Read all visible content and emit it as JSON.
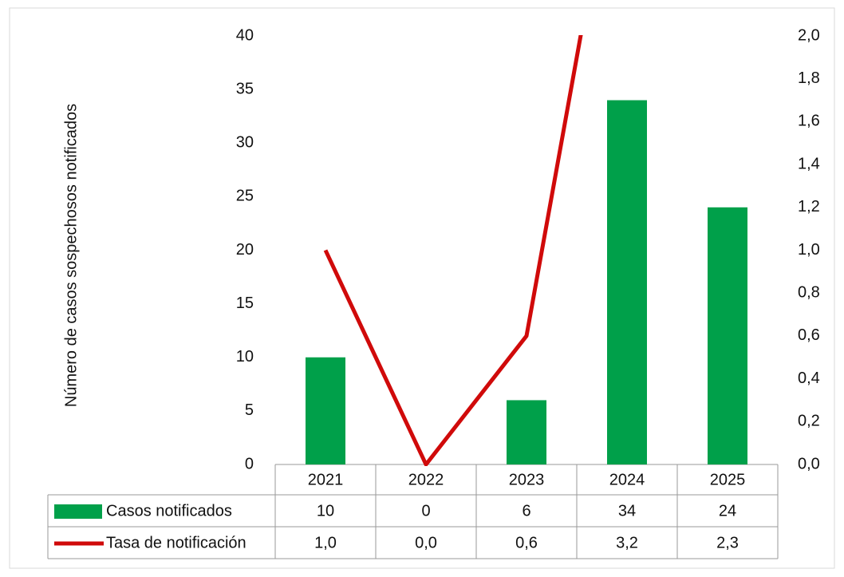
{
  "chart_data": {
    "type": "bar",
    "y_label": "Número de casos sospechosos  notificados",
    "categories": [
      "2021",
      "2022",
      "2023",
      "2024",
      "2025"
    ],
    "series": [
      {
        "name": "Casos notificados",
        "type": "bar",
        "color": "#00a04a",
        "values": [
          10,
          0,
          6,
          34,
          24
        ]
      },
      {
        "name": "Tasa de notificación",
        "type": "line",
        "axis": "y2",
        "color": "#d00a0a",
        "values": [
          1.0,
          0.0,
          0.6,
          3.2,
          2.3
        ],
        "value_labels": [
          "1,0",
          "0,0",
          "0,6",
          "3,2",
          "2,3"
        ]
      }
    ],
    "ylim": [
      0,
      40
    ],
    "yticks": [
      0,
      5,
      10,
      15,
      20,
      25,
      30,
      35,
      40
    ],
    "y2lim": [
      0,
      2
    ],
    "y2ticks": [
      {
        "value": 0,
        "label": "0,0"
      },
      {
        "value": 0.2,
        "label": "0,2"
      },
      {
        "value": 0.4,
        "label": "0,4"
      },
      {
        "value": 0.6,
        "label": "0,6"
      },
      {
        "value": 0.8,
        "label": "0,8"
      },
      {
        "value": 1.0,
        "label": "1,0"
      },
      {
        "value": 1.2,
        "label": "1,2"
      },
      {
        "value": 1.4,
        "label": "1,4"
      },
      {
        "value": 1.6,
        "label": "1,6"
      },
      {
        "value": 1.8,
        "label": "1,8"
      },
      {
        "value": 2.0,
        "label": "2,0"
      }
    ],
    "grid": false,
    "data_table": true
  }
}
